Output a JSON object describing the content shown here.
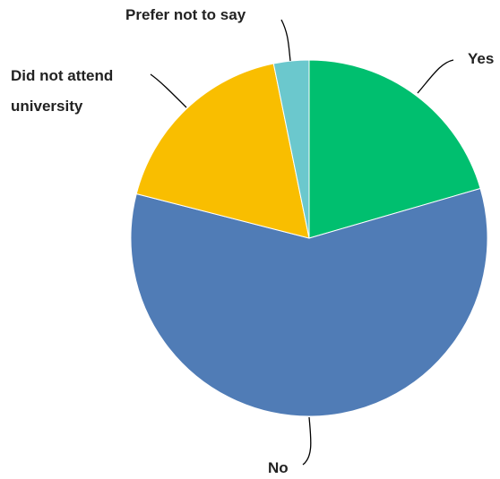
{
  "chart_data": {
    "type": "pie",
    "title": "",
    "start": "top",
    "direction": "clockwise",
    "slices": [
      {
        "label": "Yes",
        "value": 20.5,
        "color": "#00BF6F"
      },
      {
        "label": "No",
        "value": 58.5,
        "color": "#507CB6"
      },
      {
        "label": "Did not attend university",
        "label_lines": [
          "Did not attend",
          "university"
        ],
        "value": 17.8,
        "color": "#F9BE00"
      },
      {
        "label": "Prefer not to say",
        "value": 3.2,
        "color": "#6BC8CD"
      }
    ]
  }
}
